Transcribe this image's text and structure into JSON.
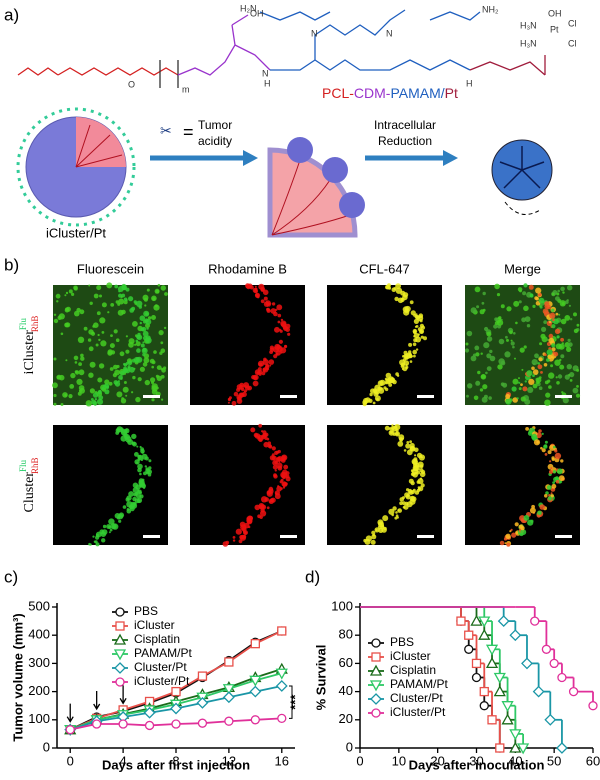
{
  "a": {
    "label": "a)",
    "chem": [
      "O",
      "m",
      "OH",
      "H₂N",
      "NH₂",
      "H₃N",
      "OH",
      "Pt",
      "Cl",
      "H₃N",
      "Cl",
      "N",
      "N",
      "N",
      "H",
      "H"
    ],
    "polymer": [
      "PCL",
      "-",
      "CDM",
      "-",
      "PAMAM",
      "/",
      "Pt"
    ],
    "polymer_colors": [
      "#d42020",
      "#d42020",
      "#9933cc",
      "#9933cc",
      "#1f5fbf",
      "#1f5fbf",
      "#a01c3c"
    ],
    "equals": "=",
    "acidity": [
      "Tumor",
      "acidity"
    ],
    "reduction": [
      "Intracellular",
      "Reduction"
    ],
    "particle": "iCluster/Pt"
  },
  "b": {
    "label": "b)",
    "columns": [
      "Fluorescein",
      "Rhodamine B",
      "CFL-647",
      "Merge"
    ],
    "rows": [
      {
        "name": "iCluster",
        "sup": "Flu",
        "sub": "RhB"
      },
      {
        "name": "Cluster",
        "sup": "Flu",
        "sub": "RhB"
      }
    ]
  },
  "chart_data": [
    {
      "type": "line",
      "panel_label": "c)",
      "ylabel": "Tumor volume (mm³)",
      "xlabel": "Days after first injection",
      "x": [
        0,
        2,
        4,
        6,
        8,
        10,
        12,
        14,
        16
      ],
      "xlim": [
        -1,
        17
      ],
      "xticks": [
        0,
        4,
        8,
        12,
        16
      ],
      "ylim": [
        0,
        500
      ],
      "yticks": [
        0,
        100,
        200,
        300,
        400,
        500
      ],
      "legend": "upper left",
      "annotation": "***",
      "series": [
        {
          "name": "PBS",
          "color": "#111111",
          "marker": "circle",
          "values": [
            65,
            110,
            130,
            160,
            195,
            250,
            310,
            375,
            415
          ]
        },
        {
          "name": "iCluster",
          "color": "#e8504a",
          "marker": "square",
          "values": [
            65,
            105,
            135,
            165,
            200,
            255,
            305,
            370,
            415
          ]
        },
        {
          "name": "Cisplatin",
          "color": "#1a6b1a",
          "marker": "triangle",
          "values": [
            65,
            100,
            120,
            140,
            165,
            190,
            215,
            250,
            280
          ]
        },
        {
          "name": "PAMAM/Pt",
          "color": "#2ec866",
          "marker": "triangle-down",
          "values": [
            65,
            100,
            118,
            135,
            155,
            180,
            210,
            240,
            265
          ]
        },
        {
          "name": "Cluster/Pt",
          "color": "#1a96a6",
          "marker": "diamond",
          "values": [
            65,
            95,
            110,
            125,
            140,
            160,
            180,
            200,
            220
          ]
        },
        {
          "name": "iCluster/Pt",
          "color": "#e0309a",
          "marker": "circle",
          "values": [
            65,
            85,
            85,
            80,
            85,
            88,
            95,
            100,
            105
          ]
        }
      ]
    },
    {
      "type": "step",
      "panel_label": "d)",
      "ylabel": "% Survival",
      "xlabel": "Days after inoculation",
      "xlim": [
        0,
        60
      ],
      "xticks": [
        0,
        10,
        20,
        30,
        40,
        50,
        60
      ],
      "ylim": [
        0,
        100
      ],
      "yticks": [
        0,
        20,
        40,
        60,
        80,
        100
      ],
      "legend": "lower left",
      "series": [
        {
          "name": "PBS",
          "color": "#111111",
          "marker": "circle",
          "x": [
            0,
            24,
            26,
            28,
            30,
            32,
            34,
            36
          ],
          "values": [
            100,
            100,
            90,
            70,
            50,
            30,
            20,
            0
          ]
        },
        {
          "name": "iCluster",
          "color": "#e8504a",
          "marker": "square",
          "x": [
            0,
            24,
            26,
            28,
            30,
            32,
            34,
            36
          ],
          "values": [
            100,
            100,
            90,
            80,
            60,
            40,
            20,
            0
          ]
        },
        {
          "name": "Cisplatin",
          "color": "#1a6b1a",
          "marker": "triangle",
          "x": [
            0,
            28,
            30,
            32,
            34,
            36,
            38,
            40
          ],
          "values": [
            100,
            100,
            90,
            80,
            60,
            40,
            20,
            0
          ]
        },
        {
          "name": "PAMAM/Pt",
          "color": "#2ec866",
          "marker": "triangle-down",
          "x": [
            0,
            30,
            32,
            34,
            36,
            38,
            40,
            42
          ],
          "values": [
            100,
            100,
            90,
            70,
            50,
            30,
            10,
            0
          ]
        },
        {
          "name": "Cluster/Pt",
          "color": "#1a96a6",
          "marker": "diamond",
          "x": [
            0,
            34,
            37,
            40,
            43,
            46,
            49,
            52
          ],
          "values": [
            100,
            100,
            90,
            80,
            60,
            40,
            20,
            0
          ]
        },
        {
          "name": "iCluster/Pt",
          "color": "#e0309a",
          "marker": "circle",
          "x": [
            0,
            40,
            45,
            48,
            50,
            52,
            55,
            60
          ],
          "values": [
            100,
            100,
            90,
            70,
            60,
            50,
            40,
            30
          ]
        }
      ]
    }
  ]
}
